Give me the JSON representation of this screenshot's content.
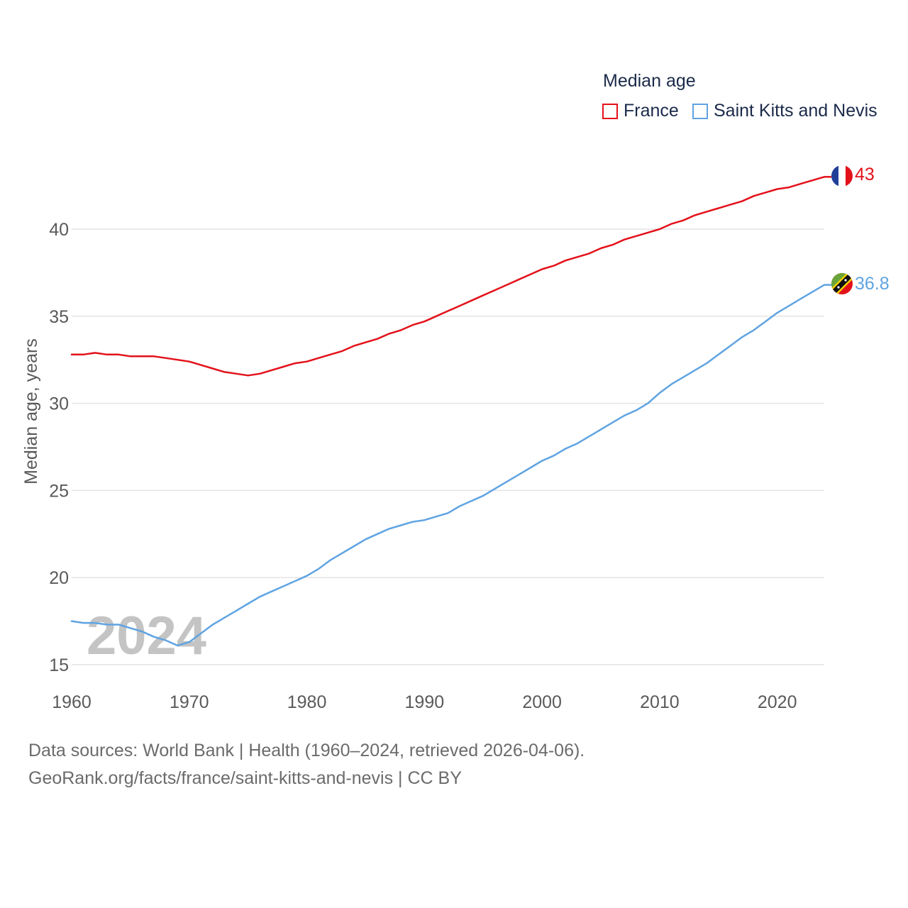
{
  "chart_data": {
    "type": "line",
    "legend_title": "Median age",
    "ylabel": "Median age, years",
    "xlabel": "",
    "ylim": [
      14,
      44
    ],
    "xlim": [
      1960,
      2024
    ],
    "y_ticks": [
      15,
      20,
      25,
      30,
      35,
      40
    ],
    "x_ticks": [
      1960,
      1970,
      1980,
      1990,
      2000,
      2010,
      2020
    ],
    "year_watermark": "2024",
    "grid": true,
    "x": [
      1960,
      1961,
      1962,
      1963,
      1964,
      1965,
      1966,
      1967,
      1968,
      1969,
      1970,
      1971,
      1972,
      1973,
      1974,
      1975,
      1976,
      1977,
      1978,
      1979,
      1980,
      1981,
      1982,
      1983,
      1984,
      1985,
      1986,
      1987,
      1988,
      1989,
      1990,
      1991,
      1992,
      1993,
      1994,
      1995,
      1996,
      1997,
      1998,
      1999,
      2000,
      2001,
      2002,
      2003,
      2004,
      2005,
      2006,
      2007,
      2008,
      2009,
      2010,
      2011,
      2012,
      2013,
      2014,
      2015,
      2016,
      2017,
      2018,
      2019,
      2020,
      2021,
      2022,
      2023,
      2024
    ],
    "series": [
      {
        "name": "France",
        "color": "#e3111a",
        "end_label": "43",
        "flag": "france-flag",
        "values": [
          32.8,
          32.8,
          32.9,
          32.8,
          32.8,
          32.7,
          32.7,
          32.7,
          32.6,
          32.5,
          32.4,
          32.2,
          32.0,
          31.8,
          31.7,
          31.6,
          31.7,
          31.9,
          32.1,
          32.3,
          32.4,
          32.6,
          32.8,
          33.0,
          33.3,
          33.5,
          33.7,
          34.0,
          34.2,
          34.5,
          34.7,
          35.0,
          35.3,
          35.6,
          35.9,
          36.2,
          36.5,
          36.8,
          37.1,
          37.4,
          37.7,
          37.9,
          38.2,
          38.4,
          38.6,
          38.9,
          39.1,
          39.4,
          39.6,
          39.8,
          40.0,
          40.3,
          40.5,
          40.8,
          41.0,
          41.2,
          41.4,
          41.6,
          41.9,
          42.1,
          42.3,
          42.4,
          42.6,
          42.8,
          43.0
        ]
      },
      {
        "name": "Saint Kitts and Nevis",
        "color": "#5fa4e2",
        "end_label": "36.8",
        "flag": "saint-kitts-and-nevis-flag",
        "values": [
          17.5,
          17.4,
          17.4,
          17.3,
          17.3,
          17.1,
          16.9,
          16.6,
          16.4,
          16.1,
          16.3,
          16.8,
          17.3,
          17.7,
          18.1,
          18.5,
          18.9,
          19.2,
          19.5,
          19.8,
          20.1,
          20.5,
          21.0,
          21.4,
          21.8,
          22.2,
          22.5,
          22.8,
          23.0,
          23.2,
          23.3,
          23.5,
          23.7,
          24.1,
          24.4,
          24.7,
          25.1,
          25.5,
          25.9,
          26.3,
          26.7,
          27.0,
          27.4,
          27.7,
          28.1,
          28.5,
          28.9,
          29.3,
          29.6,
          30.0,
          30.6,
          31.1,
          31.5,
          31.9,
          32.3,
          32.8,
          33.3,
          33.8,
          34.2,
          34.7,
          35.2,
          35.6,
          36.0,
          36.4,
          36.8
        ]
      }
    ]
  },
  "footer": {
    "line1": "Data sources: World Bank | Health (1960–2024, retrieved 2026-04-06).",
    "line2": "GeoRank.org/facts/france/saint-kitts-and-nevis | CC BY"
  }
}
